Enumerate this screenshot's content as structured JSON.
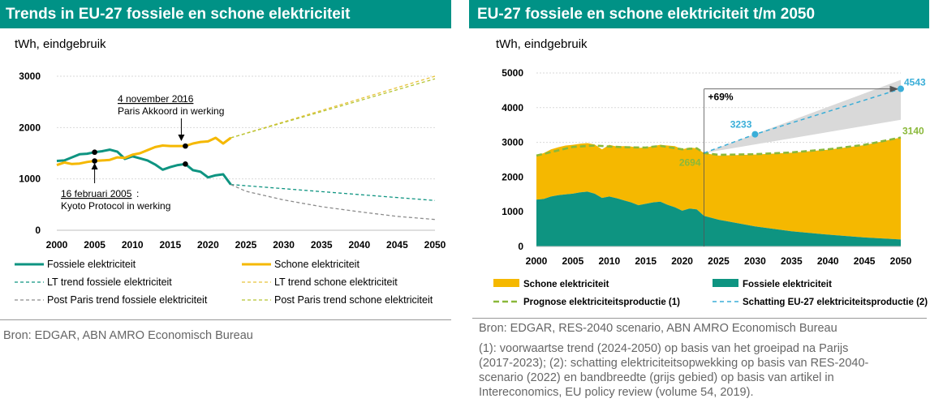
{
  "left": {
    "title": "Trends in EU-27 fossiele en schone elektriciteit",
    "unit": "tWh, eindgebruik",
    "source": "Bron: EDGAR, ABN AMRO Economisch Bureau",
    "annotations": {
      "paris_date": "4 november 2016",
      "paris_text": "Paris Akkoord in werking",
      "kyoto_date": "16 februari 2005",
      "kyoto_text": "Kyoto Protocol in werking"
    },
    "legend": [
      "Fossiele elektriciteit",
      "Schone elektriciteit",
      "LT trend fossiele elektriciteit",
      "LT trend schone elektriciteit",
      "Post Paris trend fossiele elektriciteit",
      "Post Paris trend schone elektriciteit"
    ]
  },
  "right": {
    "title": "EU-27 fossiele en schone elektriciteit t/m 2050",
    "unit": "tWh, eindgebruik",
    "source": "Bron: EDGAR, RES-2040 scenario, ABN AMRO Economisch Bureau",
    "footnote": "(1): voorwaartse trend (2024-2050) op basis van het groeipad na Parijs (2017-2023); (2): schatting elektriciteitsopwekking op basis van RES-2040-scenario (2022) en bandbreedte (grijs gebied) op basis van artikel in Intereconomics, EU policy review (volume 54, 2019).",
    "footnote_lines": [
      "(1): voorwaartse trend (2024-2050) op basis van het groeipad na Parijs",
      "(2017-2023); (2): schatting elektriciteitsopwekking op basis van RES-2040-",
      "scenario (2022) en bandbreedte (grijs gebied) op basis van artikel in",
      "Intereconomics, EU policy review (volume 54, 2019)."
    ],
    "marker_label": "+69%",
    "labels": {
      "v2023": "2694",
      "v2030": "3233",
      "v2050a": "4543",
      "v2050b": "3140"
    },
    "legend": [
      "Schone elektriciteit",
      "Fossiele elektriciteit",
      "Prognose elektriciteitsproductie (1)",
      "Schatting EU-27 elektriciteitsproductie (2)"
    ]
  },
  "colors": {
    "teal": "#0e9481",
    "yellow": "#f5b800",
    "green_dash": "#8ab83a",
    "olive_dash": "#b5c432",
    "blue_dash": "#3aaed8",
    "grey_dash": "#8c8c8c",
    "band": "#d9d9d9"
  },
  "chart_data": [
    {
      "type": "line",
      "title": "Trends in EU-27 fossiele en schone elektriciteit",
      "ylabel": "tWh, eindgebruik",
      "xlim": [
        2000,
        2050
      ],
      "ylim": [
        0,
        3000
      ],
      "x_ticks": [
        2000,
        2005,
        2010,
        2015,
        2020,
        2025,
        2030,
        2035,
        2040,
        2045,
        2050
      ],
      "y_ticks": [
        0,
        1000,
        2000,
        3000
      ],
      "series": [
        {
          "name": "Fossiele elektriciteit",
          "x": [
            2000,
            2001,
            2002,
            2003,
            2004,
            2005,
            2006,
            2007,
            2008,
            2009,
            2010,
            2011,
            2012,
            2013,
            2014,
            2015,
            2016,
            2017,
            2018,
            2019,
            2020,
            2021,
            2022,
            2023
          ],
          "values": [
            1350,
            1360,
            1420,
            1480,
            1490,
            1520,
            1540,
            1570,
            1530,
            1390,
            1440,
            1400,
            1360,
            1280,
            1180,
            1230,
            1270,
            1290,
            1170,
            1140,
            1030,
            1070,
            1090,
            890
          ]
        },
        {
          "name": "Schone elektriciteit",
          "x": [
            2000,
            2001,
            2002,
            2003,
            2004,
            2005,
            2006,
            2007,
            2008,
            2009,
            2010,
            2011,
            2012,
            2013,
            2014,
            2015,
            2016,
            2017,
            2018,
            2019,
            2020,
            2021,
            2022,
            2023
          ],
          "values": [
            1270,
            1320,
            1290,
            1300,
            1330,
            1350,
            1360,
            1370,
            1420,
            1410,
            1470,
            1500,
            1560,
            1620,
            1650,
            1640,
            1640,
            1640,
            1690,
            1720,
            1730,
            1800,
            1690,
            1800
          ]
        },
        {
          "name": "LT trend fossiele elektriciteit",
          "x": [
            2023,
            2050
          ],
          "values": [
            890,
            580
          ]
        },
        {
          "name": "LT trend schone elektriciteit",
          "x": [
            2023,
            2050
          ],
          "values": [
            1800,
            3000
          ]
        },
        {
          "name": "Post Paris trend fossiele elektriciteit",
          "x": [
            2023,
            2025,
            2030,
            2035,
            2040,
            2045,
            2050
          ],
          "values": [
            890,
            760,
            590,
            460,
            360,
            270,
            210
          ]
        },
        {
          "name": "Post Paris trend schone elektriciteit",
          "x": [
            2023,
            2050
          ],
          "values": [
            1800,
            2950
          ]
        }
      ],
      "annotations": [
        {
          "x": 2005,
          "text": "16 februari 2005: Kyoto Protocol in werking"
        },
        {
          "x": 2017,
          "text": "4 november 2016: Paris Akkoord in werking"
        }
      ],
      "legend": "bottom"
    },
    {
      "type": "area",
      "title": "EU-27 fossiele en schone elektriciteit t/m 2050",
      "ylabel": "tWh, eindgebruik",
      "xlim": [
        2000,
        2050
      ],
      "ylim": [
        0,
        5000
      ],
      "x_ticks": [
        2000,
        2005,
        2010,
        2015,
        2020,
        2025,
        2030,
        2035,
        2040,
        2045,
        2050
      ],
      "y_ticks": [
        0,
        1000,
        2000,
        3000,
        4000,
        5000
      ],
      "series": [
        {
          "name": "Fossiele elektriciteit",
          "x": [
            2000,
            2001,
            2002,
            2003,
            2004,
            2005,
            2006,
            2007,
            2008,
            2009,
            2010,
            2011,
            2012,
            2013,
            2014,
            2015,
            2016,
            2017,
            2018,
            2019,
            2020,
            2021,
            2022,
            2023,
            2025,
            2030,
            2035,
            2040,
            2045,
            2050
          ],
          "values": [
            1350,
            1370,
            1440,
            1480,
            1500,
            1520,
            1560,
            1580,
            1520,
            1400,
            1440,
            1390,
            1330,
            1270,
            1190,
            1230,
            1270,
            1290,
            1200,
            1130,
            1030,
            1090,
            1070,
            880,
            770,
            580,
            440,
            340,
            260,
            200
          ]
        },
        {
          "name": "Schone elektriciteit",
          "x": [
            2000,
            2001,
            2002,
            2003,
            2004,
            2005,
            2006,
            2007,
            2008,
            2009,
            2010,
            2011,
            2012,
            2013,
            2014,
            2015,
            2016,
            2017,
            2018,
            2019,
            2020,
            2021,
            2022,
            2023,
            2025,
            2030,
            2035,
            2040,
            2045,
            2050
          ],
          "values": [
            1270,
            1320,
            1360,
            1380,
            1410,
            1410,
            1400,
            1400,
            1420,
            1400,
            1490,
            1490,
            1560,
            1610,
            1650,
            1620,
            1620,
            1640,
            1710,
            1760,
            1770,
            1760,
            1760,
            1814,
            1850,
            2070,
            2260,
            2450,
            2660,
            2940
          ]
        },
        {
          "name": "Prognose elektriciteitsproductie (1)",
          "x": [
            2000,
            2005,
            2008,
            2010,
            2012,
            2015,
            2017,
            2020,
            2022,
            2023,
            2025,
            2030,
            2035,
            2040,
            2045,
            2050
          ],
          "values": [
            2620,
            2870,
            2910,
            2880,
            2860,
            2850,
            2900,
            2800,
            2830,
            2694,
            2640,
            2660,
            2710,
            2800,
            2930,
            3140
          ]
        },
        {
          "name": "Schatting EU-27 elektriciteitsproductie (2)",
          "x": [
            2023,
            2030,
            2050
          ],
          "values": [
            2694,
            3233,
            4543
          ]
        }
      ],
      "band": {
        "x": [
          2023,
          2050
        ],
        "lower": [
          2694,
          3650
        ],
        "upper": [
          2694,
          4800
        ]
      },
      "vline_x": 2023,
      "data_labels": [
        {
          "x": 2023,
          "y": 2694,
          "text": "2694"
        },
        {
          "x": 2030,
          "y": 3233,
          "text": "3233"
        },
        {
          "x": 2050,
          "y": 4543,
          "text": "4543"
        },
        {
          "x": 2050,
          "y": 3140,
          "text": "3140"
        }
      ],
      "legend": "bottom"
    }
  ]
}
